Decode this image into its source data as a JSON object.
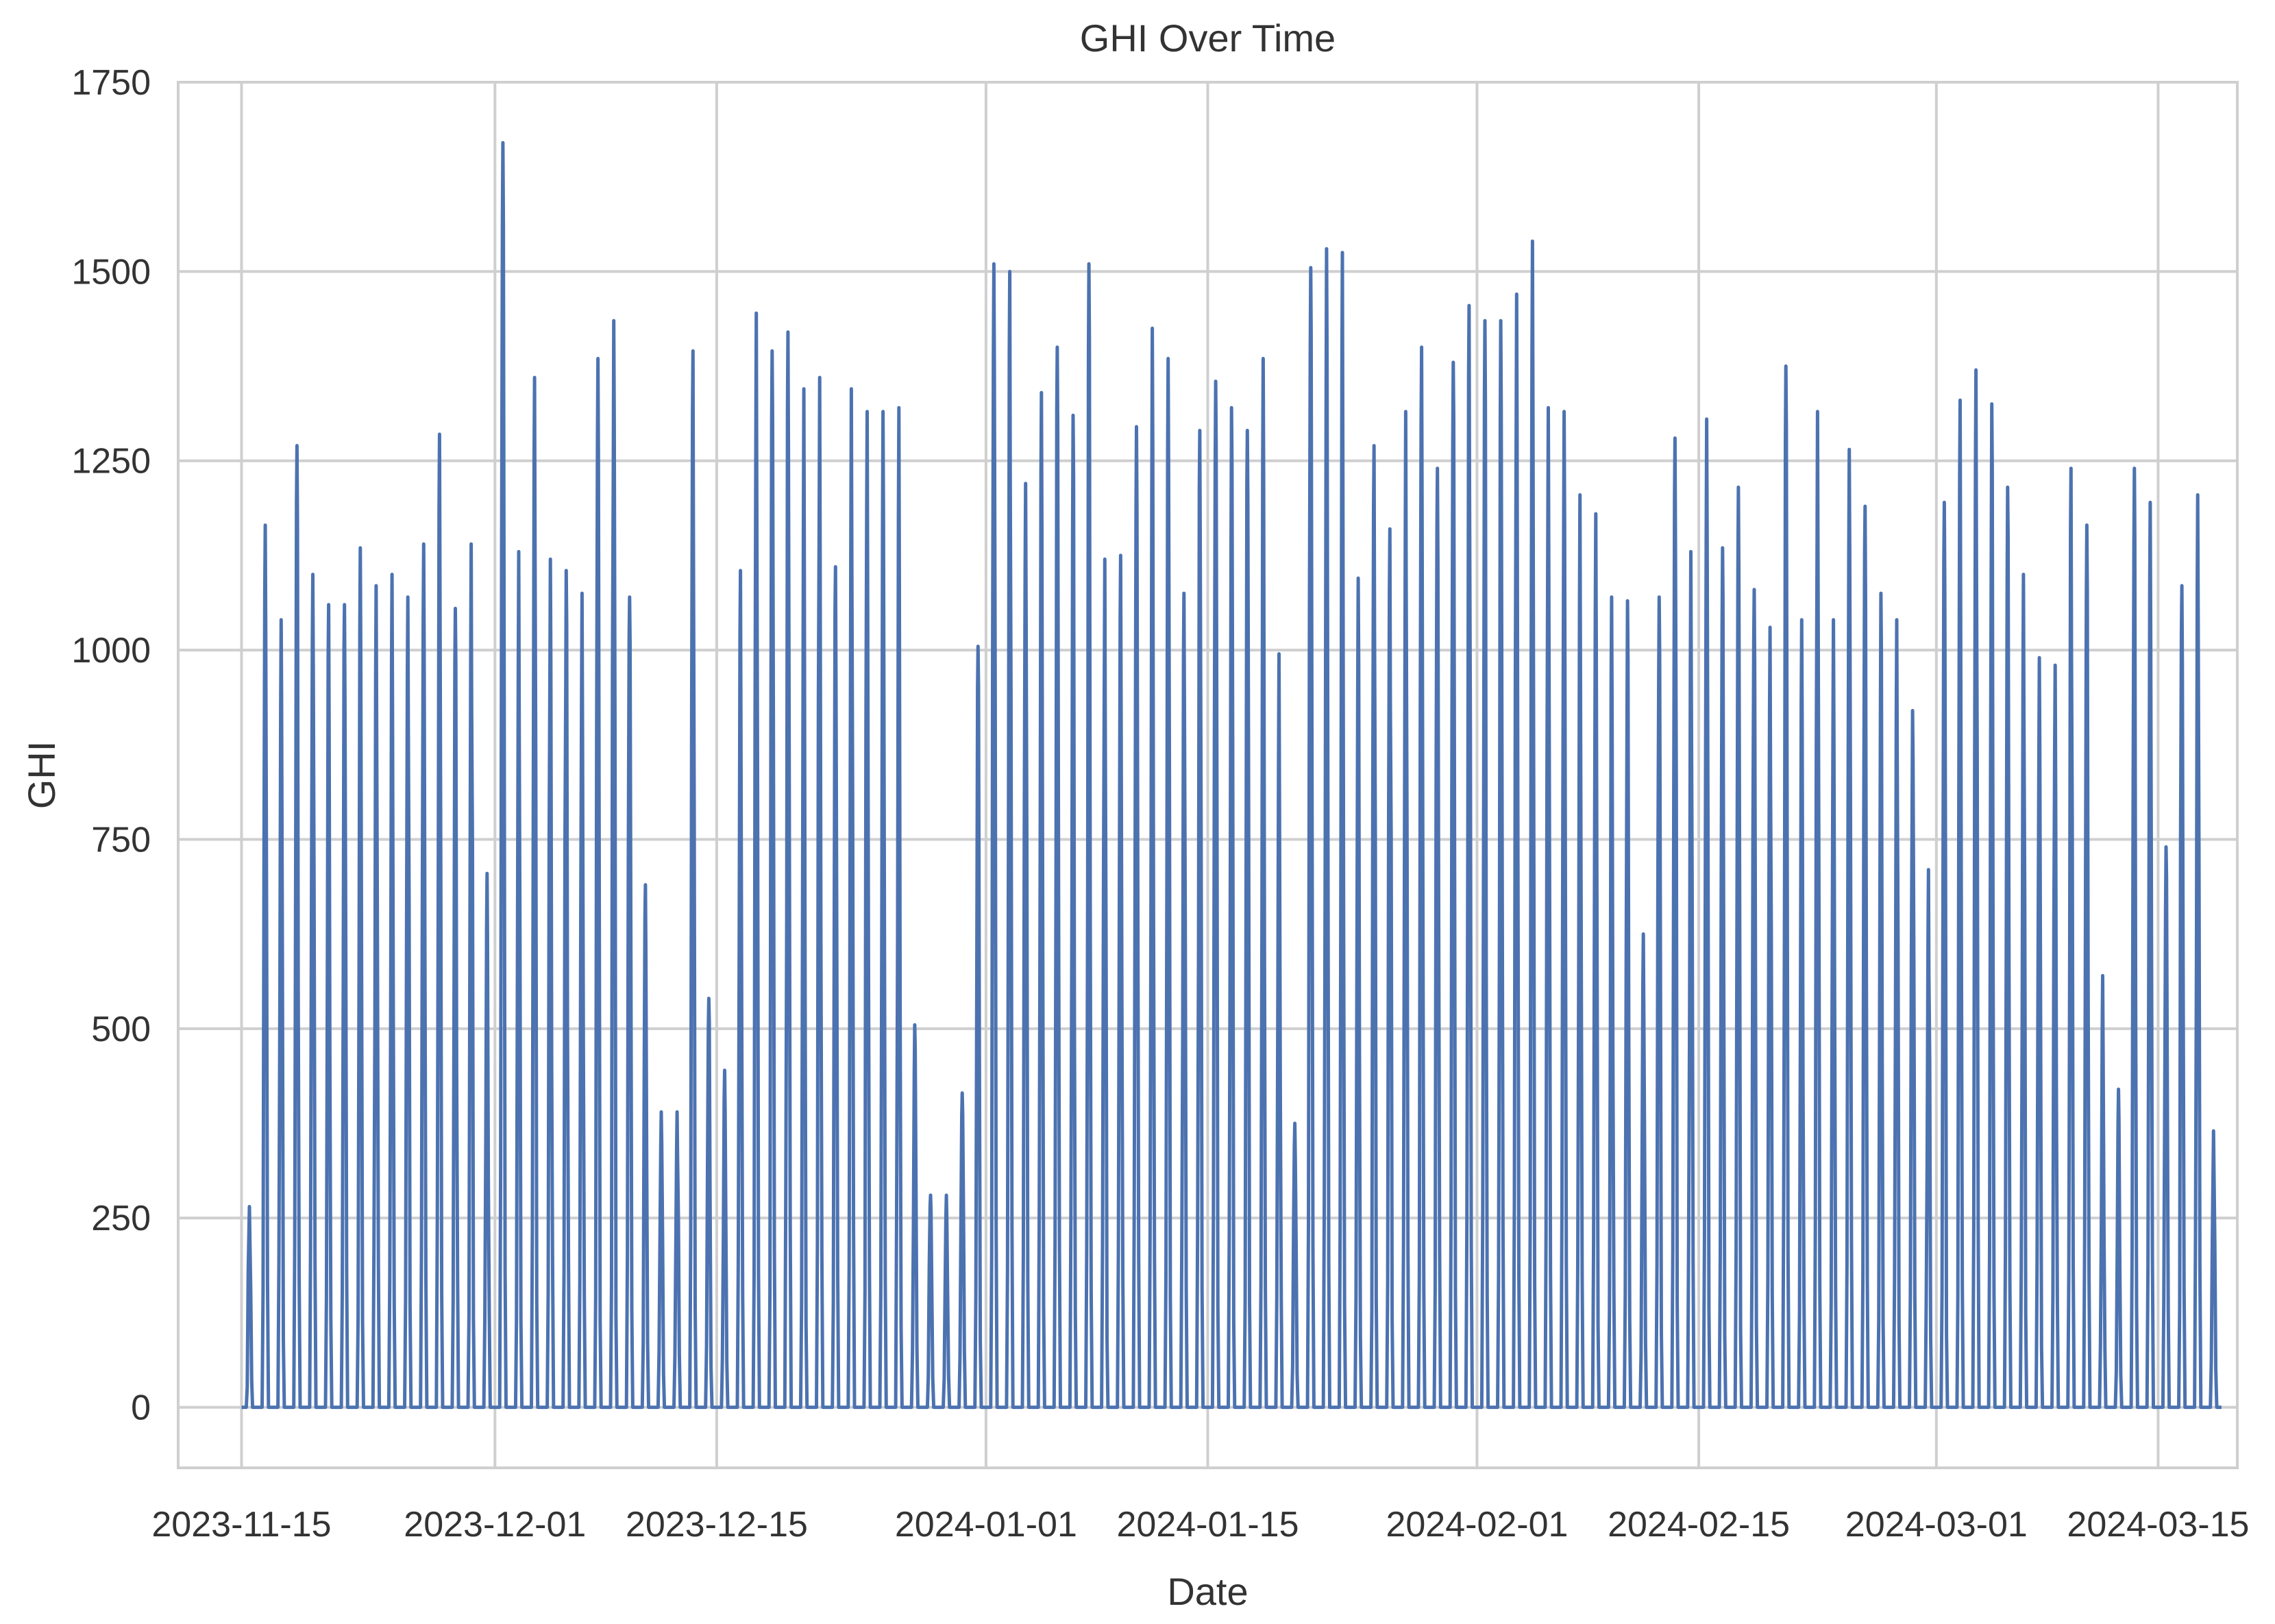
{
  "chart_data": {
    "type": "line",
    "title": "GHI Over Time",
    "xlabel": "Date",
    "ylabel": "GHI",
    "xlim": [
      "2023-11-11",
      "2024-03-20"
    ],
    "ylim": [
      -80,
      1750
    ],
    "x_ticks": [
      "2023-11-15",
      "2023-12-01",
      "2023-12-15",
      "2024-01-01",
      "2024-01-15",
      "2024-02-01",
      "2024-02-15",
      "2024-03-01",
      "2024-03-15"
    ],
    "y_ticks": [
      0,
      250,
      500,
      750,
      1000,
      1250,
      1500,
      1750
    ],
    "grid": true,
    "color": "#4c72b0",
    "series": [
      {
        "x_start": "2023-11-15",
        "resolution": "one daily peak per day, zero at night",
        "daily_peak": [
          265,
          1165,
          1040,
          1270,
          1100,
          1060,
          1060,
          1135,
          1085,
          1100,
          1070,
          1140,
          1285,
          1055,
          1140,
          705,
          1670,
          1130,
          1360,
          1120,
          1105,
          1075,
          1385,
          1435,
          1070,
          690,
          390,
          390,
          1395,
          540,
          445,
          1105,
          1445,
          1395,
          1420,
          1345,
          1360,
          1110,
          1345,
          1315,
          1315,
          1320,
          505,
          280,
          280,
          415,
          1005,
          1510,
          1500,
          1220,
          1340,
          1400,
          1310,
          1510,
          1120,
          1125,
          1295,
          1425,
          1385,
          1075,
          1290,
          1355,
          1320,
          1290,
          1385,
          995,
          375,
          1505,
          1530,
          1525,
          1095,
          1270,
          1160,
          1315,
          1400,
          1240,
          1380,
          1455,
          1435,
          1435,
          1470,
          1540,
          1320,
          1315,
          1205,
          1180,
          1070,
          1065,
          625,
          1070,
          1280,
          1130,
          1305,
          1135,
          1215,
          1080,
          1030,
          1375,
          1040,
          1315,
          1040,
          1265,
          1190,
          1075,
          1040,
          920,
          710,
          1195,
          1330,
          1370,
          1325,
          1215,
          1100,
          990,
          980,
          1240,
          1165,
          570,
          420,
          1240,
          1195,
          740,
          1085,
          1205,
          365
        ]
      }
    ]
  }
}
